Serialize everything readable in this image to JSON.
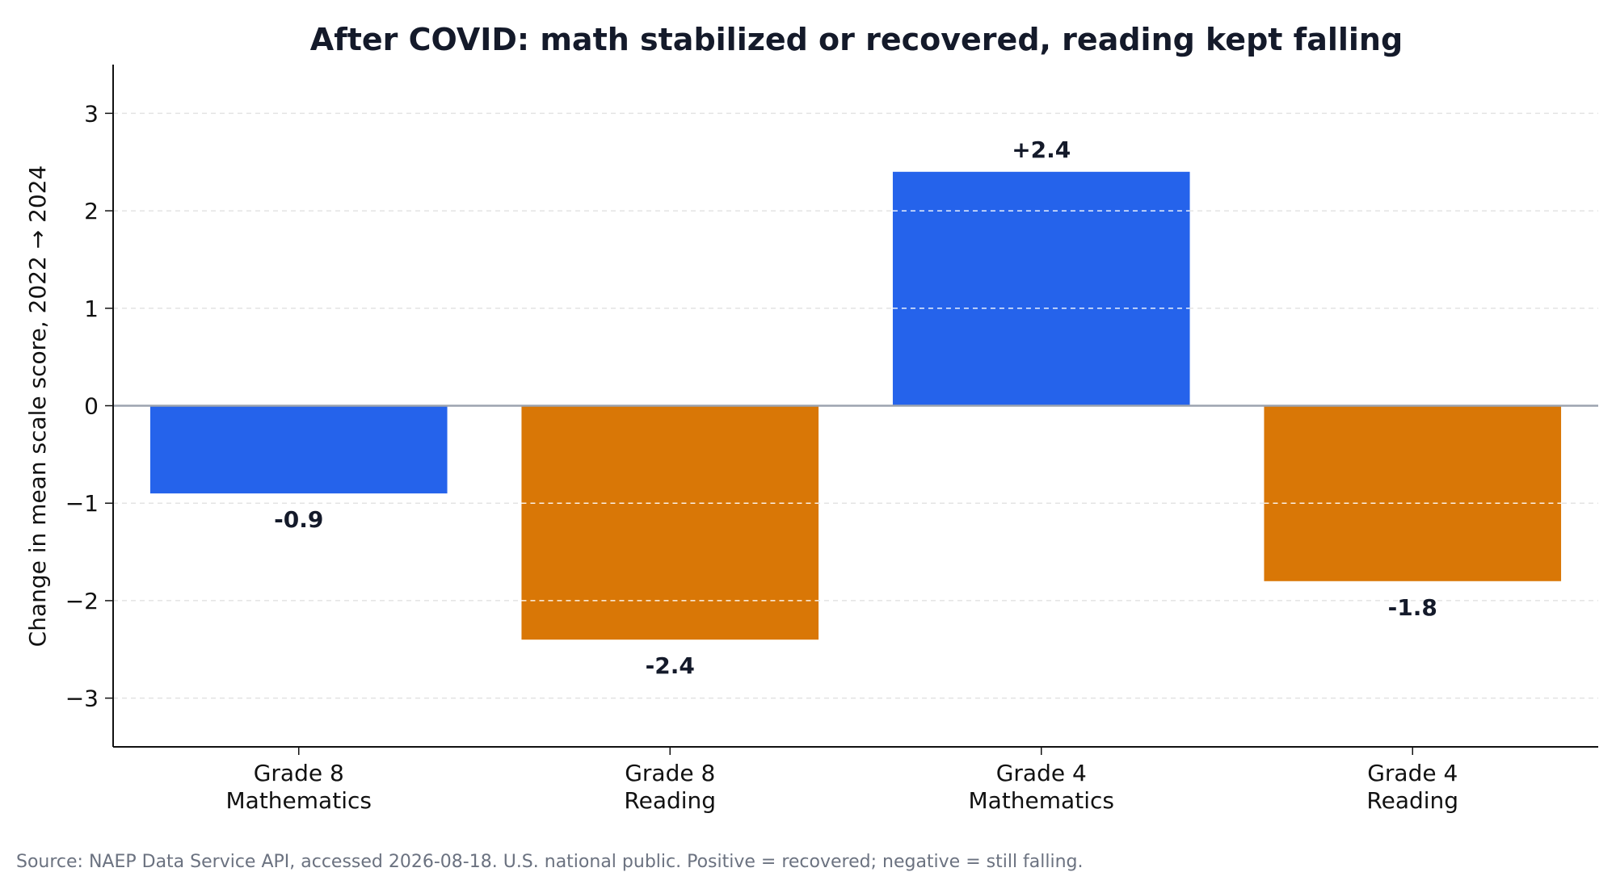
{
  "chart_data": {
    "type": "bar",
    "title": "After COVID: math stabilized or recovered, reading kept falling",
    "ylabel": "Change in mean scale score, 2022 → 2024",
    "xlabel": "",
    "categories": [
      [
        "Grade 8",
        "Mathematics"
      ],
      [
        "Grade 8",
        "Reading"
      ],
      [
        "Grade 4",
        "Mathematics"
      ],
      [
        "Grade 4",
        "Reading"
      ]
    ],
    "values": [
      -0.9,
      -2.4,
      2.4,
      -1.8
    ],
    "value_labels": [
      "-0.9",
      "-2.4",
      "+2.4",
      "-1.8"
    ],
    "bar_subjects": [
      "Mathematics",
      "Reading",
      "Mathematics",
      "Reading"
    ],
    "colors": {
      "Mathematics": "#2563eb",
      "Reading": "#d97706"
    },
    "ylim": [
      -3.5,
      3.5
    ],
    "yticks": [
      -3,
      -2,
      -1,
      0,
      1,
      2,
      3
    ],
    "ytick_labels": [
      "−3",
      "−2",
      "−1",
      "0",
      "1",
      "2",
      "3"
    ],
    "grid": true,
    "legend": "none",
    "source": "Source: NAEP Data Service API, accessed 2026-08-18. U.S. national public. Positive = recovered; negative = still falling."
  }
}
